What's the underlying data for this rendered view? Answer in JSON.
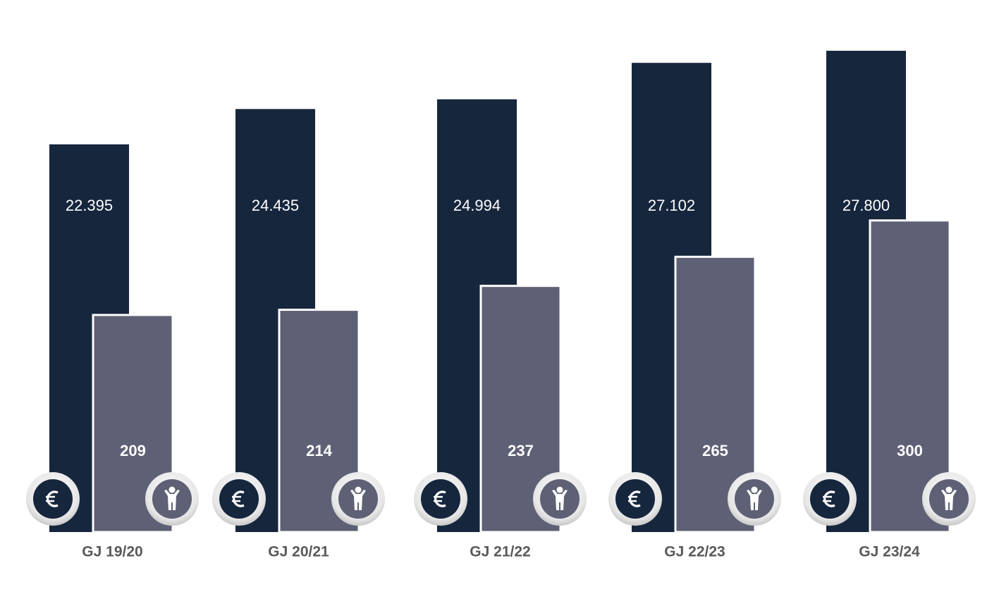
{
  "chart_data": {
    "type": "bar",
    "categories": [
      "GJ 19/20",
      "GJ 20/21",
      "GJ 21/22",
      "GJ 22/23",
      "GJ 23/24"
    ],
    "series": [
      {
        "color": "#16263d",
        "values": [
          22395,
          24435,
          24994,
          27102,
          27800
        ],
        "value_labels": [
          "22.395",
          "24.435",
          "24.994",
          "27.102",
          "27.800"
        ]
      },
      {
        "color": "#5e6075",
        "axis": "y2",
        "values": [
          209,
          214,
          237,
          265,
          300
        ]
      }
    ],
    "ylim": [
      0,
      30000
    ],
    "y2lim": [
      0,
      500
    ]
  }
}
